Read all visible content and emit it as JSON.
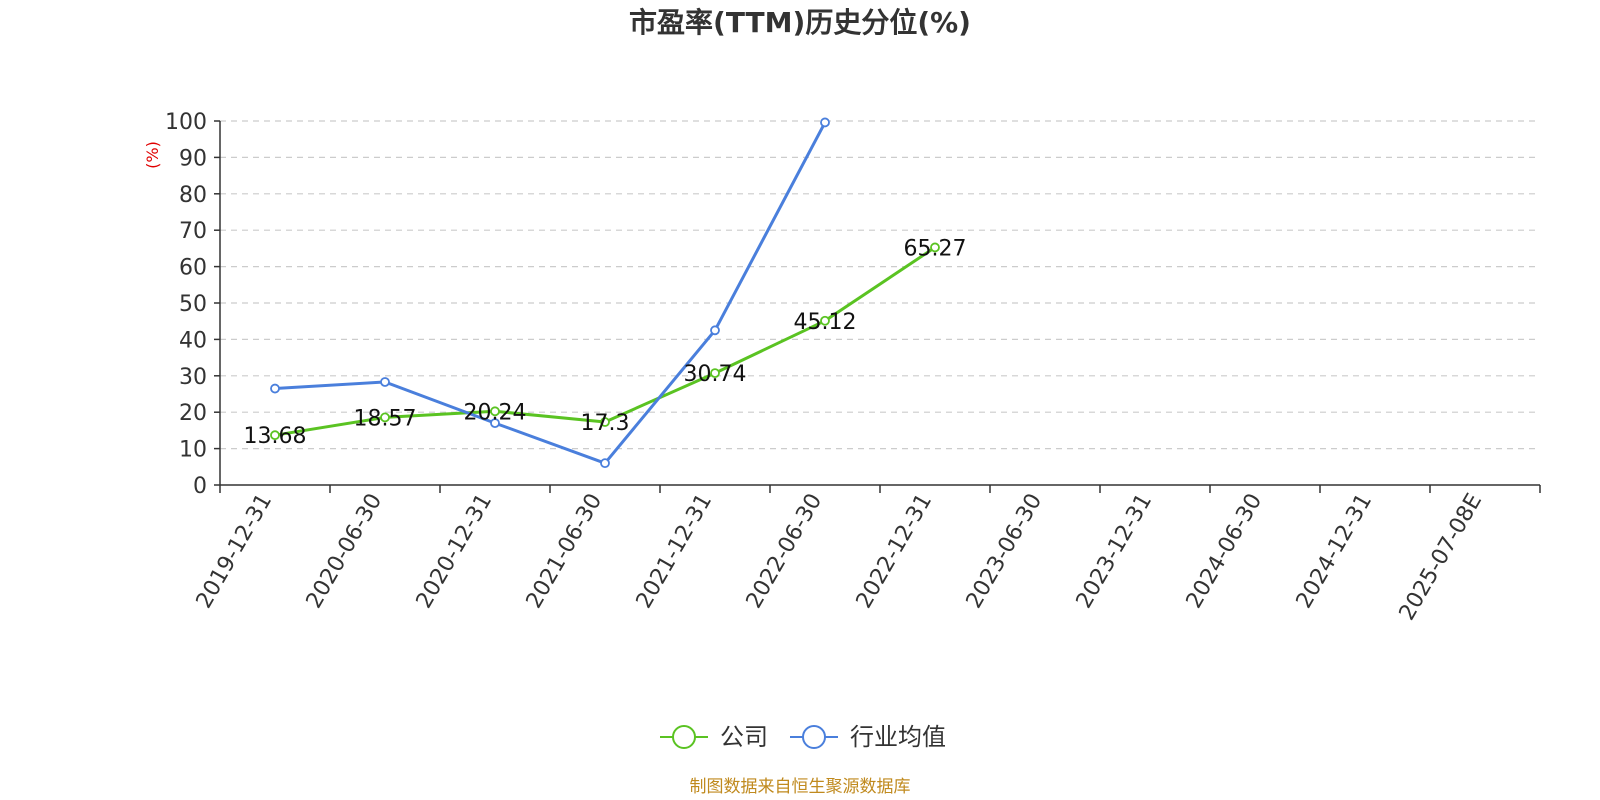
{
  "chart_data": {
    "type": "line",
    "title": "市盈率(TTM)历史分位(%)",
    "ylabel": "(%)",
    "xlabel": "",
    "ylim": [
      0,
      100
    ],
    "yticks": [
      0,
      10,
      20,
      30,
      40,
      50,
      60,
      70,
      80,
      90,
      100
    ],
    "grid": true,
    "legend_position": "bottom-center",
    "categories": [
      "2019-12-31",
      "2020-06-30",
      "2020-12-31",
      "2021-06-30",
      "2021-12-31",
      "2022-06-30",
      "2022-12-31",
      "2023-06-30",
      "2023-12-31",
      "2024-06-30",
      "2024-12-31",
      "2025-07-08E"
    ],
    "series": [
      {
        "name": "公司",
        "color": "#5ac322",
        "values": [
          13.68,
          18.57,
          20.24,
          17.3,
          30.74,
          45.12,
          65.27,
          null,
          null,
          null,
          null,
          null
        ],
        "data_labels": [
          "13.68",
          "18.57",
          "20.24",
          "17.3",
          "30.74",
          "45.12",
          "65.27"
        ]
      },
      {
        "name": "行业均值",
        "color": "#4a7fdc",
        "values": [
          26.5,
          28.3,
          17.0,
          6.0,
          42.5,
          99.6,
          null,
          null,
          null,
          null,
          null,
          null
        ]
      }
    ],
    "source": "制图数据来自恒生聚源数据库"
  }
}
